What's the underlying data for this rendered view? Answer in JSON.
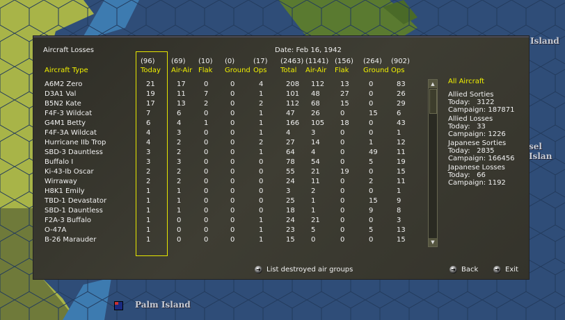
{
  "map": {
    "labels": {
      "top_right": "Island",
      "mid_right": "sel Islan",
      "bottom": "Palm Island"
    },
    "colors": {
      "sea": "#2f4d78",
      "land": "#a8b448",
      "shallow": "#3d7bb0"
    }
  },
  "dialog": {
    "title": "Aircraft Losses",
    "date": "Date: Feb 16, 1942",
    "aircraft_type_header": "Aircraft Type",
    "columns": [
      {
        "total": "(96)",
        "label": "Today"
      },
      {
        "total": "(69)",
        "label": "Air-Air"
      },
      {
        "total": "(10)",
        "label": "Flak"
      },
      {
        "total": "(0)",
        "label": "Ground"
      },
      {
        "total": "(17)",
        "label": "Ops"
      },
      {
        "total": "(2463)",
        "label": "Total"
      },
      {
        "total": "(1141)",
        "label": "Air-Air"
      },
      {
        "total": "(156)",
        "label": "Flak"
      },
      {
        "total": "(264)",
        "label": "Ground"
      },
      {
        "total": "(902)",
        "label": "Ops"
      }
    ],
    "rows": [
      {
        "name": "A6M2 Zero",
        "v": [
          "21",
          "17",
          "0",
          "0",
          "4",
          "208",
          "112",
          "13",
          "0",
          "83"
        ]
      },
      {
        "name": "D3A1 Val",
        "v": [
          "19",
          "11",
          "7",
          "0",
          "1",
          "101",
          "48",
          "27",
          "0",
          "26"
        ]
      },
      {
        "name": "B5N2 Kate",
        "v": [
          "17",
          "13",
          "2",
          "0",
          "2",
          "112",
          "68",
          "15",
          "0",
          "29"
        ]
      },
      {
        "name": "F4F-3 Wildcat",
        "v": [
          "7",
          "6",
          "0",
          "0",
          "1",
          "47",
          "26",
          "0",
          "15",
          "6"
        ]
      },
      {
        "name": "G4M1 Betty",
        "v": [
          "6",
          "4",
          "1",
          "0",
          "1",
          "166",
          "105",
          "18",
          "0",
          "43"
        ]
      },
      {
        "name": "F4F-3A Wildcat",
        "v": [
          "4",
          "3",
          "0",
          "0",
          "1",
          "4",
          "3",
          "0",
          "0",
          "1"
        ]
      },
      {
        "name": "Hurricane IIb Trop",
        "v": [
          "4",
          "2",
          "0",
          "0",
          "2",
          "27",
          "14",
          "0",
          "1",
          "12"
        ]
      },
      {
        "name": "SBD-3 Dauntless",
        "v": [
          "3",
          "2",
          "0",
          "0",
          "1",
          "64",
          "4",
          "0",
          "49",
          "11"
        ]
      },
      {
        "name": "Buffalo I",
        "v": [
          "3",
          "3",
          "0",
          "0",
          "0",
          "78",
          "54",
          "0",
          "5",
          "19"
        ]
      },
      {
        "name": "Ki-43-Ib Oscar",
        "v": [
          "2",
          "2",
          "0",
          "0",
          "0",
          "55",
          "21",
          "19",
          "0",
          "15"
        ]
      },
      {
        "name": "Wirraway",
        "v": [
          "2",
          "2",
          "0",
          "0",
          "0",
          "24",
          "11",
          "0",
          "2",
          "11"
        ]
      },
      {
        "name": "H8K1 Emily",
        "v": [
          "1",
          "1",
          "0",
          "0",
          "0",
          "3",
          "2",
          "0",
          "0",
          "1"
        ]
      },
      {
        "name": "TBD-1 Devastator",
        "v": [
          "1",
          "1",
          "0",
          "0",
          "0",
          "25",
          "1",
          "0",
          "15",
          "9"
        ]
      },
      {
        "name": "SBD-1 Dauntless",
        "v": [
          "1",
          "1",
          "0",
          "0",
          "0",
          "18",
          "1",
          "0",
          "9",
          "8"
        ]
      },
      {
        "name": "F2A-3 Buffalo",
        "v": [
          "1",
          "0",
          "0",
          "0",
          "1",
          "24",
          "21",
          "0",
          "0",
          "3"
        ]
      },
      {
        "name": "O-47A",
        "v": [
          "1",
          "0",
          "0",
          "0",
          "1",
          "23",
          "5",
          "0",
          "5",
          "13"
        ]
      },
      {
        "name": "B-26 Marauder",
        "v": [
          "1",
          "0",
          "0",
          "0",
          "1",
          "15",
          "0",
          "0",
          "0",
          "15"
        ]
      }
    ],
    "summary": {
      "heading": "All Aircraft",
      "blocks": [
        {
          "title": "Allied Sorties",
          "today": "Today:   3122",
          "campaign": "Campaign: 187871"
        },
        {
          "title": "Allied Losses",
          "today": "Today:   33",
          "campaign": "Campaign: 1226"
        },
        {
          "title": "Japanese Sorties",
          "today": "Today:   2835",
          "campaign": "Campaign: 166456"
        },
        {
          "title": "Japanese Losses",
          "today": "Today:   66",
          "campaign": "Campaign: 1192"
        }
      ]
    },
    "buttons": {
      "list_destroyed": "List destroyed air groups",
      "back": "Back",
      "exit": "Exit"
    },
    "colors": {
      "header": "#f0f000",
      "text": "#f2f2f2",
      "highlight_box": "#e8e800"
    }
  }
}
